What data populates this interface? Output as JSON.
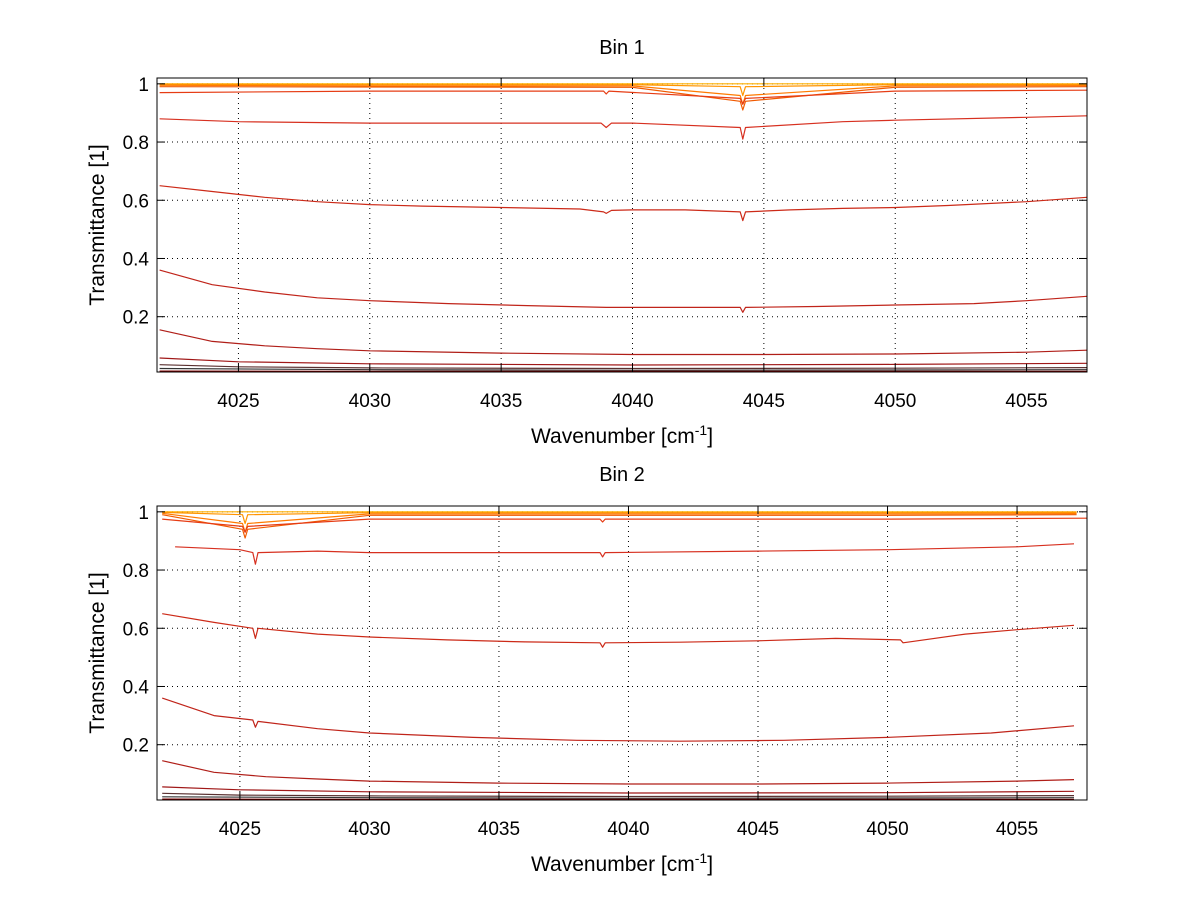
{
  "chart_data": [
    {
      "type": "line",
      "title": "Bin 1",
      "xlabel": "Wavenumber [cm",
      "xlabel_sup": "-1",
      "xlabel_end": "]",
      "ylabel": "Transmittance [1]",
      "xlim": [
        4021.9,
        4057.3
      ],
      "ylim": [
        0.01,
        1.02
      ],
      "xticks": [
        4025,
        4030,
        4035,
        4040,
        4045,
        4050,
        4055
      ],
      "yticks": [
        0.2,
        0.4,
        0.6,
        0.8,
        1
      ],
      "xtick_labels": [
        "4025",
        "4030",
        "4035",
        "4040",
        "4045",
        "4050",
        "4055"
      ],
      "ytick_labels": [
        "0.2",
        "0.4",
        "0.6",
        "0.8",
        "1"
      ],
      "grid": true,
      "series": [
        {
          "color": "#ffb000",
          "x": [
            4022,
            4030,
            4040,
            4050,
            4057.3
          ],
          "y": [
            1.0,
            1.0,
            1.0,
            1.0,
            1.0
          ]
        },
        {
          "color": "#ff9500",
          "x": [
            4022,
            4030,
            4040,
            4044.1,
            4044.2,
            4044.3,
            4050,
            4057.3
          ],
          "y": [
            0.998,
            0.997,
            0.997,
            0.99,
            0.96,
            0.99,
            0.997,
            0.998
          ]
        },
        {
          "color": "#ff7a00",
          "x": [
            4022,
            4030,
            4040,
            4044.1,
            4044.2,
            4044.3,
            4050,
            4057.3
          ],
          "y": [
            0.995,
            0.993,
            0.993,
            0.96,
            0.93,
            0.96,
            0.993,
            0.994
          ]
        },
        {
          "color": "#f05a00",
          "x": [
            4022,
            4030,
            4040,
            4044.1,
            4044.2,
            4044.3,
            4050,
            4057.3
          ],
          "y": [
            0.99,
            0.989,
            0.988,
            0.94,
            0.91,
            0.94,
            0.988,
            0.99
          ]
        },
        {
          "color": "#e63c14",
          "x": [
            4022,
            4030,
            4038.9,
            4039,
            4039.1,
            4044.1,
            4044.2,
            4044.3,
            4050,
            4057.3
          ],
          "y": [
            0.97,
            0.975,
            0.975,
            0.965,
            0.975,
            0.95,
            0.93,
            0.95,
            0.975,
            0.978
          ]
        },
        {
          "color": "#d73020",
          "x": [
            4022,
            4025,
            4030,
            4035,
            4038.8,
            4039,
            4039.2,
            4040,
            4044.1,
            4044.2,
            4044.3,
            4048,
            4050,
            4055,
            4057.3
          ],
          "y": [
            0.88,
            0.87,
            0.865,
            0.865,
            0.865,
            0.85,
            0.865,
            0.865,
            0.85,
            0.81,
            0.85,
            0.87,
            0.875,
            0.885,
            0.89
          ]
        },
        {
          "color": "#cc2a18",
          "x": [
            4022,
            4024,
            4026,
            4028,
            4030,
            4032,
            4035,
            4038,
            4038.9,
            4039,
            4039.2,
            4040,
            4042,
            4044.1,
            4044.2,
            4044.3,
            4046,
            4048,
            4050,
            4052,
            4055,
            4057.3
          ],
          "y": [
            0.65,
            0.63,
            0.61,
            0.595,
            0.585,
            0.58,
            0.575,
            0.57,
            0.56,
            0.555,
            0.565,
            0.567,
            0.567,
            0.56,
            0.53,
            0.56,
            0.567,
            0.572,
            0.575,
            0.582,
            0.595,
            0.61
          ]
        },
        {
          "color": "#c0241a",
          "x": [
            4022,
            4024,
            4026,
            4028,
            4030,
            4033,
            4036,
            4039,
            4042,
            4044.1,
            4044.2,
            4044.3,
            4047,
            4050,
            4053,
            4055,
            4057.3
          ],
          "y": [
            0.36,
            0.31,
            0.285,
            0.265,
            0.255,
            0.245,
            0.238,
            0.232,
            0.232,
            0.232,
            0.215,
            0.232,
            0.235,
            0.24,
            0.245,
            0.255,
            0.27
          ]
        },
        {
          "color": "#b01e18",
          "x": [
            4022,
            4024,
            4026,
            4028,
            4030,
            4035,
            4040,
            4045,
            4050,
            4055,
            4057.3
          ],
          "y": [
            0.155,
            0.115,
            0.1,
            0.09,
            0.083,
            0.075,
            0.07,
            0.07,
            0.072,
            0.078,
            0.085
          ]
        },
        {
          "color": "#a01818",
          "x": [
            4022,
            4025,
            4030,
            4040,
            4050,
            4057.3
          ],
          "y": [
            0.058,
            0.045,
            0.038,
            0.034,
            0.036,
            0.04
          ]
        },
        {
          "color": "#5a3030",
          "x": [
            4022,
            4025,
            4030,
            4040,
            4050,
            4057.3
          ],
          "y": [
            0.035,
            0.028,
            0.024,
            0.022,
            0.023,
            0.025
          ]
        },
        {
          "color": "#333333",
          "x": [
            4022,
            4030,
            4040,
            4050,
            4057.3
          ],
          "y": [
            0.022,
            0.018,
            0.016,
            0.017,
            0.018
          ]
        },
        {
          "color": "#800000",
          "x": [
            4022,
            4030,
            4040,
            4050,
            4057.3
          ],
          "y": [
            0.013,
            0.012,
            0.012,
            0.012,
            0.012
          ]
        }
      ]
    },
    {
      "type": "line",
      "title": "Bin 2",
      "xlabel": "Wavenumber [cm",
      "xlabel_sup": "-1",
      "xlabel_end": "]",
      "ylabel": "Transmittance [1]",
      "xlim": [
        4021.8,
        4057.7
      ],
      "ylim": [
        0.01,
        1.02
      ],
      "xticks": [
        4025,
        4030,
        4035,
        4040,
        4045,
        4050,
        4055
      ],
      "yticks": [
        0.2,
        0.4,
        0.6,
        0.8,
        1
      ],
      "xtick_labels": [
        "4025",
        "4030",
        "4035",
        "4040",
        "4045",
        "4050",
        "4055"
      ],
      "ytick_labels": [
        "0.2",
        "0.4",
        "0.6",
        "0.8",
        "1"
      ],
      "grid": true,
      "series": [
        {
          "color": "#ffb000",
          "x": [
            4022,
            4030,
            4040,
            4050,
            4057.3
          ],
          "y": [
            1.0,
            1.0,
            1.0,
            1.0,
            1.0
          ]
        },
        {
          "color": "#ff9500",
          "x": [
            4022,
            4025.1,
            4025.2,
            4025.3,
            4030,
            4040,
            4050,
            4057.3
          ],
          "y": [
            0.998,
            0.99,
            0.96,
            0.99,
            0.997,
            0.997,
            0.997,
            0.998
          ]
        },
        {
          "color": "#ff7a00",
          "x": [
            4022,
            4025.1,
            4025.2,
            4025.3,
            4030,
            4040,
            4050,
            4057.3
          ],
          "y": [
            0.995,
            0.96,
            0.93,
            0.96,
            0.993,
            0.993,
            0.993,
            0.994
          ]
        },
        {
          "color": "#f05a00",
          "x": [
            4022,
            4025.1,
            4025.2,
            4025.3,
            4030,
            4040,
            4050,
            4057.3
          ],
          "y": [
            0.99,
            0.94,
            0.91,
            0.94,
            0.988,
            0.988,
            0.988,
            0.99
          ]
        },
        {
          "color": "#e63c14",
          "x": [
            4022,
            4025.1,
            4025.2,
            4025.3,
            4030,
            4038.9,
            4039,
            4039.1,
            4050,
            4057.7
          ],
          "y": [
            0.975,
            0.95,
            0.93,
            0.95,
            0.975,
            0.975,
            0.965,
            0.975,
            0.975,
            0.978
          ]
        },
        {
          "color": "#d73020",
          "x": [
            4022.5,
            4025,
            4025.5,
            4025.6,
            4025.7,
            4028,
            4030,
            4035,
            4038.9,
            4039,
            4039.1,
            4045,
            4050,
            4055,
            4057.2
          ],
          "y": [
            0.88,
            0.87,
            0.86,
            0.82,
            0.86,
            0.865,
            0.86,
            0.86,
            0.86,
            0.845,
            0.86,
            0.865,
            0.87,
            0.88,
            0.89
          ]
        },
        {
          "color": "#cc2a18",
          "x": [
            4022,
            4024,
            4025.5,
            4025.6,
            4025.7,
            4028,
            4030,
            4033,
            4036,
            4038.9,
            4039,
            4039.1,
            4042,
            4045,
            4048,
            4050.5,
            4050.6,
            4053,
            4055,
            4057.2
          ],
          "y": [
            0.65,
            0.62,
            0.6,
            0.565,
            0.6,
            0.58,
            0.57,
            0.56,
            0.553,
            0.55,
            0.535,
            0.55,
            0.552,
            0.557,
            0.565,
            0.56,
            0.55,
            0.58,
            0.595,
            0.61
          ]
        },
        {
          "color": "#c0241a",
          "x": [
            4022,
            4024,
            4025.5,
            4025.6,
            4025.7,
            4028,
            4030,
            4034,
            4038,
            4042,
            4046,
            4050,
            4054,
            4057.2
          ],
          "y": [
            0.36,
            0.3,
            0.285,
            0.26,
            0.28,
            0.255,
            0.24,
            0.225,
            0.215,
            0.212,
            0.215,
            0.225,
            0.24,
            0.265
          ]
        },
        {
          "color": "#b01e18",
          "x": [
            4022,
            4024,
            4026,
            4028,
            4030,
            4035,
            4040,
            4045,
            4050,
            4055,
            4057.2
          ],
          "y": [
            0.145,
            0.105,
            0.09,
            0.082,
            0.075,
            0.068,
            0.065,
            0.065,
            0.068,
            0.075,
            0.08
          ]
        },
        {
          "color": "#a01818",
          "x": [
            4022,
            4025,
            4030,
            4040,
            4050,
            4057.2
          ],
          "y": [
            0.055,
            0.045,
            0.038,
            0.034,
            0.035,
            0.04
          ]
        },
        {
          "color": "#5a3030",
          "x": [
            4022,
            4025,
            4030,
            4040,
            4050,
            4057.2
          ],
          "y": [
            0.033,
            0.027,
            0.024,
            0.022,
            0.023,
            0.025
          ]
        },
        {
          "color": "#333333",
          "x": [
            4022,
            4030,
            4040,
            4050,
            4057.2
          ],
          "y": [
            0.021,
            0.018,
            0.016,
            0.017,
            0.018
          ]
        },
        {
          "color": "#800000",
          "x": [
            4022,
            4030,
            4040,
            4050,
            4057.2
          ],
          "y": [
            0.013,
            0.012,
            0.012,
            0.012,
            0.012
          ]
        }
      ]
    }
  ]
}
